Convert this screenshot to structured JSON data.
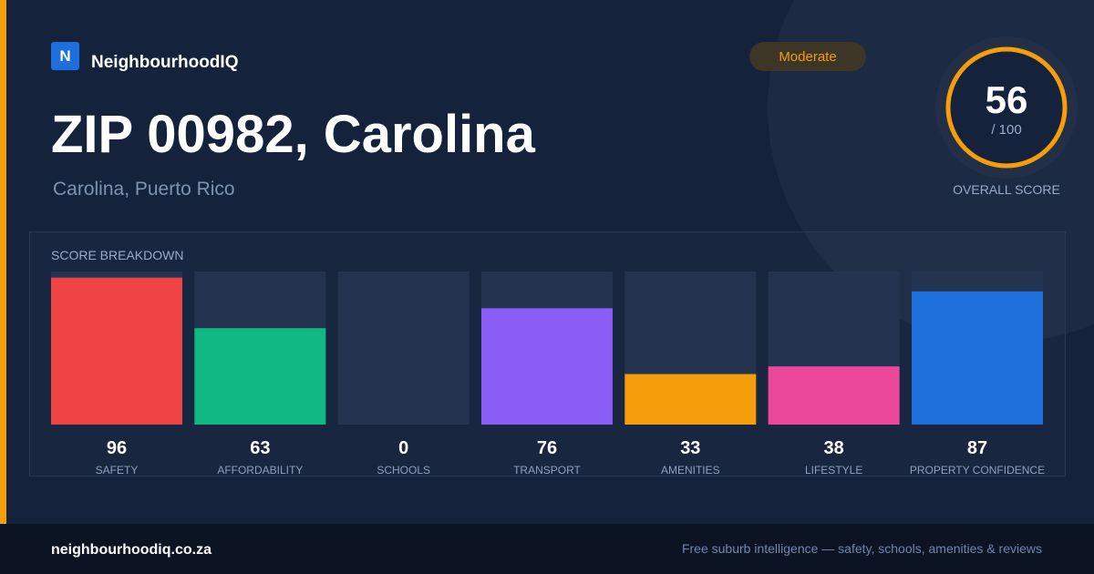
{
  "brand": {
    "logo_letter": "N",
    "name": "NeighbourhoodIQ"
  },
  "badge": "Moderate",
  "header": {
    "title": "ZIP 00982, Carolina",
    "subtitle": "Carolina, Puerto Rico"
  },
  "score": {
    "value": "56",
    "max_label": "/ 100",
    "label": "OVERALL SCORE"
  },
  "chart_data": {
    "type": "bar",
    "title": "SCORE BREAKDOWN",
    "categories": [
      "SAFETY",
      "AFFORDABILITY",
      "SCHOOLS",
      "TRANSPORT",
      "AMENITIES",
      "LIFESTYLE",
      "PROPERTY CONFIDENCE"
    ],
    "values": [
      96,
      63,
      0,
      76,
      33,
      38,
      87
    ],
    "colors": [
      "#ef4444",
      "#10b981",
      "#3b82f6",
      "#8b5cf6",
      "#f59e0b",
      "#ec4899",
      "#1d6fdc"
    ],
    "ylim": [
      0,
      100
    ]
  },
  "footer": {
    "site": "neighbourhoodiq.co.za",
    "tagline": "Free suburb intelligence — safety, schools, amenities & reviews"
  }
}
